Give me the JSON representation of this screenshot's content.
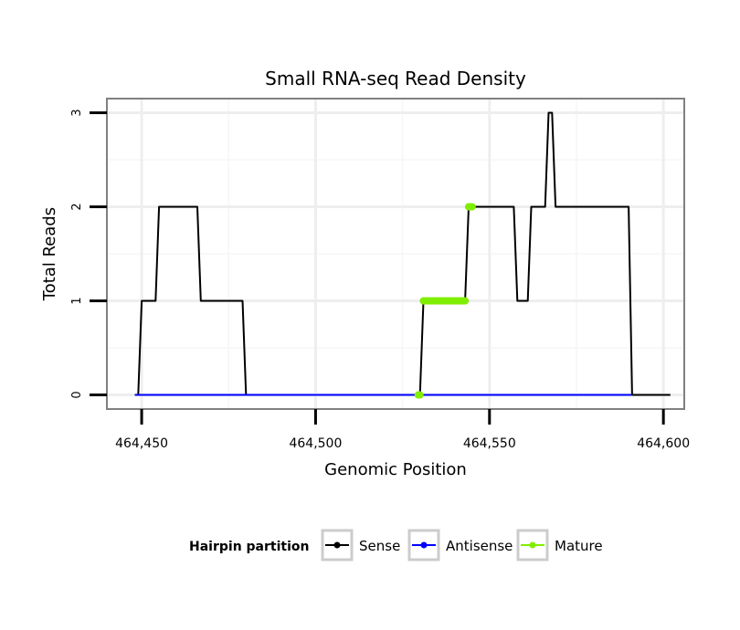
{
  "chart_data": {
    "type": "line",
    "title": "Small RNA-seq Read Density",
    "xlabel": "Genomic Position",
    "ylabel": "Total Reads",
    "xlim": [
      464440,
      464606
    ],
    "ylim": [
      -0.15,
      3.15
    ],
    "x_ticks": [
      464450,
      464500,
      464550,
      464600
    ],
    "x_tick_labels": [
      "464,450",
      "464,500",
      "464,550",
      "464,600"
    ],
    "y_ticks": [
      0,
      1,
      2,
      3
    ],
    "y_tick_labels": [
      "0",
      "1",
      "2",
      "3"
    ],
    "grid": true,
    "legend": {
      "title": "Hairpin partition",
      "position": "bottom",
      "entries": [
        {
          "label": "Sense",
          "color": "#000000"
        },
        {
          "label": "Antisense",
          "color": "#0000ff"
        },
        {
          "label": "Mature",
          "color": "#80ee00"
        }
      ]
    },
    "series": [
      {
        "name": "Sense",
        "color": "#000000",
        "x": [
          464448,
          464449,
          464450,
          464454,
          464455,
          464466,
          464467,
          464479,
          464480,
          464530,
          464531,
          464543,
          464544,
          464557,
          464558,
          464561,
          464562,
          464566,
          464567,
          464568,
          464569,
          464590,
          464591,
          464602
        ],
        "y": [
          0,
          0,
          1,
          1,
          2,
          2,
          1,
          1,
          0,
          0,
          1,
          1,
          2,
          2,
          1,
          1,
          2,
          2,
          3,
          3,
          2,
          2,
          0,
          0
        ]
      },
      {
        "name": "Antisense",
        "color": "#0000ff",
        "x": [
          464448,
          464591
        ],
        "y": [
          0,
          0
        ]
      },
      {
        "name": "Mature",
        "color": "#80ee00",
        "segments": [
          {
            "x": [
              464529.5,
              464530
            ],
            "y": [
              0,
              0
            ]
          },
          {
            "x": [
              464531,
              464543
            ],
            "y": [
              1,
              1
            ]
          },
          {
            "x": [
              464544,
              464545
            ],
            "y": [
              2,
              2
            ]
          }
        ]
      }
    ]
  }
}
